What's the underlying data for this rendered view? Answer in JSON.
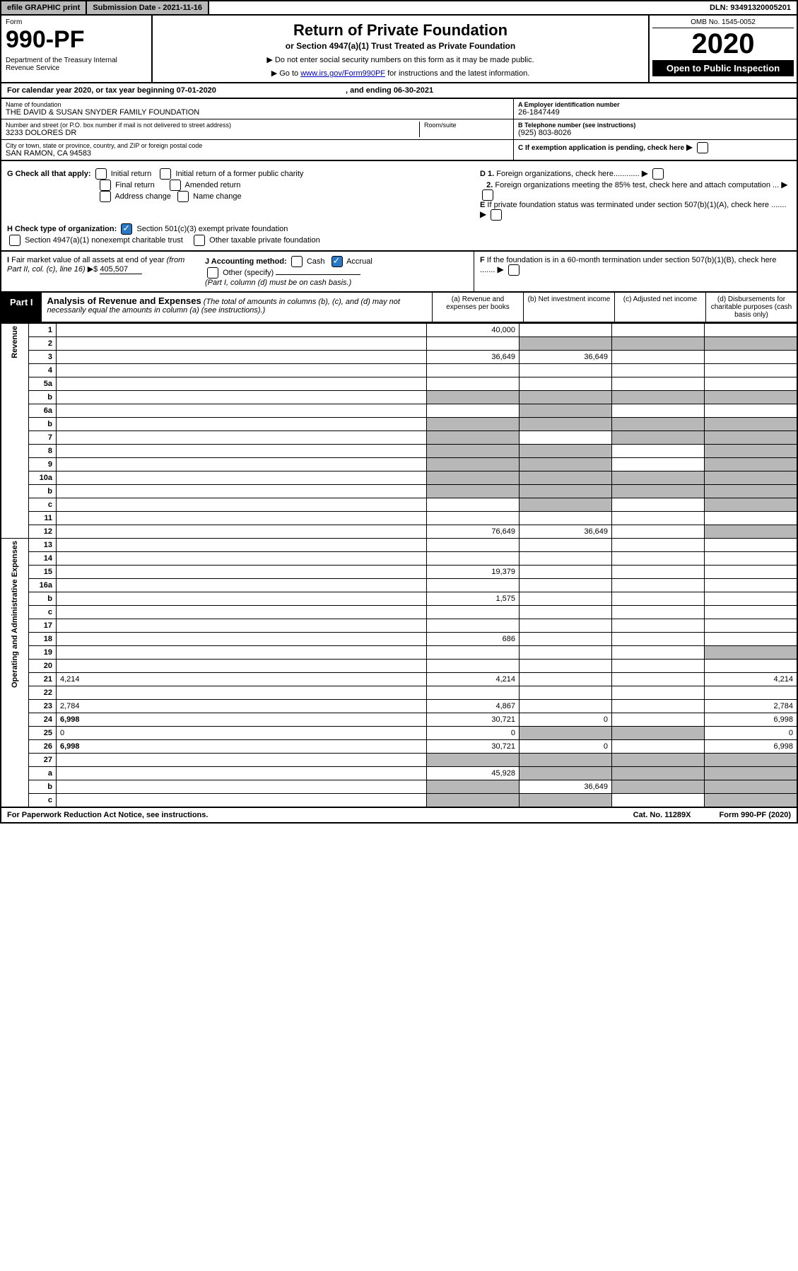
{
  "topbar": {
    "efile": "efile GRAPHIC print",
    "subdate": "Submission Date - 2021-11-16",
    "dln": "DLN: 93491320005201"
  },
  "header": {
    "form_label": "Form",
    "form_number": "990-PF",
    "dept": "Department of the Treasury\nInternal Revenue Service",
    "title": "Return of Private Foundation",
    "subtitle": "or Section 4947(a)(1) Trust Treated as Private Foundation",
    "note1": "▶ Do not enter social security numbers on this form as it may be made public.",
    "note2_prefix": "▶ Go to ",
    "note2_link": "www.irs.gov/Form990PF",
    "note2_suffix": " for instructions and the latest information.",
    "omb": "OMB No. 1545-0052",
    "year": "2020",
    "open": "Open to Public Inspection"
  },
  "calyear": {
    "text": "For calendar year 2020, or tax year beginning 07-01-2020",
    "ending": ", and ending 06-30-2021"
  },
  "info": {
    "name_label": "Name of foundation",
    "name": "THE DAVID & SUSAN SNYDER FAMILY FOUNDATION",
    "addr_label": "Number and street (or P.O. box number if mail is not delivered to street address)",
    "addr": "3233 DOLORES DR",
    "room_label": "Room/suite",
    "city_label": "City or town, state or province, country, and ZIP or foreign postal code",
    "city": "SAN RAMON, CA  94583",
    "a_label": "A Employer identification number",
    "a_val": "26-1847449",
    "b_label": "B Telephone number (see instructions)",
    "b_val": "(925) 803-8026",
    "c_label": "C If exemption application is pending, check here"
  },
  "checks": {
    "g": "G Check all that apply:",
    "g1": "Initial return",
    "g2": "Initial return of a former public charity",
    "g3": "Final return",
    "g4": "Amended return",
    "g5": "Address change",
    "g6": "Name change",
    "d1": "D 1. Foreign organizations, check here............",
    "d2": "2. Foreign organizations meeting the 85% test, check here and attach computation ...",
    "e": "E If private foundation status was terminated under section 507(b)(1)(A), check here .......",
    "h": "H Check type of organization:",
    "h1": "Section 501(c)(3) exempt private foundation",
    "h2": "Section 4947(a)(1) nonexempt charitable trust",
    "h3": "Other taxable private foundation",
    "i": "I Fair market value of all assets at end of year (from Part II, col. (c), line 16) ▶$",
    "i_val": "405,507",
    "j": "J Accounting method:",
    "j1": "Cash",
    "j2": "Accrual",
    "j3": "Other (specify)",
    "j_note": "(Part I, column (d) must be on cash basis.)",
    "f": "F If the foundation is in a 60-month termination under section 507(b)(1)(B), check here ......."
  },
  "part1": {
    "tag": "Part I",
    "title": "Analysis of Revenue and Expenses",
    "title_note": "(The total of amounts in columns (b), (c), and (d) may not necessarily equal the amounts in column (a) (see instructions).)",
    "col_a": "(a) Revenue and expenses per books",
    "col_b": "(b) Net investment income",
    "col_c": "(c) Adjusted net income",
    "col_d": "(d) Disbursements for charitable purposes (cash basis only)"
  },
  "sidelabels": {
    "rev": "Revenue",
    "oae": "Operating and Administrative Expenses"
  },
  "rows": [
    {
      "n": "1",
      "d": "",
      "a": "40,000",
      "b": "",
      "c": ""
    },
    {
      "n": "2",
      "d": "",
      "a": "",
      "b": "",
      "c": "",
      "greyb": true,
      "greyc": true,
      "greyd": true
    },
    {
      "n": "3",
      "d": "",
      "a": "36,649",
      "b": "36,649",
      "c": ""
    },
    {
      "n": "4",
      "d": "",
      "a": "",
      "b": "",
      "c": ""
    },
    {
      "n": "5a",
      "d": "",
      "a": "",
      "b": "",
      "c": ""
    },
    {
      "n": "b",
      "d": "",
      "a": "",
      "b": "",
      "c": "",
      "greyb": true,
      "greyc": true,
      "greyd": true,
      "greya": true
    },
    {
      "n": "6a",
      "d": "",
      "a": "",
      "b": "",
      "c": "",
      "greyb": true
    },
    {
      "n": "b",
      "d": "",
      "a": "",
      "b": "",
      "c": "",
      "greya": true,
      "greyb": true,
      "greyc": true,
      "greyd": true
    },
    {
      "n": "7",
      "d": "",
      "a": "",
      "b": "",
      "c": "",
      "greya": true,
      "greyc": true,
      "greyd": true
    },
    {
      "n": "8",
      "d": "",
      "a": "",
      "b": "",
      "c": "",
      "greya": true,
      "greyb": true,
      "greyd": true
    },
    {
      "n": "9",
      "d": "",
      "a": "",
      "b": "",
      "c": "",
      "greya": true,
      "greyb": true,
      "greyd": true
    },
    {
      "n": "10a",
      "d": "",
      "a": "",
      "b": "",
      "c": "",
      "greya": true,
      "greyb": true,
      "greyc": true,
      "greyd": true
    },
    {
      "n": "b",
      "d": "",
      "a": "",
      "b": "",
      "c": "",
      "greya": true,
      "greyb": true,
      "greyc": true,
      "greyd": true
    },
    {
      "n": "c",
      "d": "",
      "a": "",
      "b": "",
      "c": "",
      "greyb": true,
      "greyd": true
    },
    {
      "n": "11",
      "d": "",
      "a": "",
      "b": "",
      "c": ""
    },
    {
      "n": "12",
      "d": "",
      "a": "76,649",
      "b": "36,649",
      "c": "",
      "bold": true,
      "greyd": true
    },
    {
      "n": "13",
      "d": "",
      "a": "",
      "b": "",
      "c": ""
    },
    {
      "n": "14",
      "d": "",
      "a": "",
      "b": "",
      "c": ""
    },
    {
      "n": "15",
      "d": "",
      "a": "19,379",
      "b": "",
      "c": ""
    },
    {
      "n": "16a",
      "d": "",
      "a": "",
      "b": "",
      "c": ""
    },
    {
      "n": "b",
      "d": "",
      "a": "1,575",
      "b": "",
      "c": ""
    },
    {
      "n": "c",
      "d": "",
      "a": "",
      "b": "",
      "c": ""
    },
    {
      "n": "17",
      "d": "",
      "a": "",
      "b": "",
      "c": ""
    },
    {
      "n": "18",
      "d": "",
      "a": "686",
      "b": "",
      "c": ""
    },
    {
      "n": "19",
      "d": "",
      "a": "",
      "b": "",
      "c": "",
      "greyd": true
    },
    {
      "n": "20",
      "d": "",
      "a": "",
      "b": "",
      "c": ""
    },
    {
      "n": "21",
      "d": "4,214",
      "a": "4,214",
      "b": "",
      "c": ""
    },
    {
      "n": "22",
      "d": "",
      "a": "",
      "b": "",
      "c": ""
    },
    {
      "n": "23",
      "d": "2,784",
      "a": "4,867",
      "b": "",
      "c": ""
    },
    {
      "n": "24",
      "d": "6,998",
      "a": "30,721",
      "b": "0",
      "c": "",
      "bold": true
    },
    {
      "n": "25",
      "d": "0",
      "a": "0",
      "b": "",
      "c": "",
      "greyb": true,
      "greyc": true
    },
    {
      "n": "26",
      "d": "6,998",
      "a": "30,721",
      "b": "0",
      "c": "",
      "bold": true
    },
    {
      "n": "27",
      "d": "",
      "a": "",
      "b": "",
      "c": "",
      "greya": true,
      "greyb": true,
      "greyc": true,
      "greyd": true
    },
    {
      "n": "a",
      "d": "",
      "a": "45,928",
      "b": "",
      "c": "",
      "bold": true,
      "greyb": true,
      "greyc": true,
      "greyd": true
    },
    {
      "n": "b",
      "d": "",
      "a": "",
      "b": "36,649",
      "c": "",
      "bold": true,
      "greya": true,
      "greyc": true,
      "greyd": true
    },
    {
      "n": "c",
      "d": "",
      "a": "",
      "b": "",
      "c": "",
      "bold": true,
      "greya": true,
      "greyb": true,
      "greyd": true
    }
  ],
  "footer": {
    "left": "For Paperwork Reduction Act Notice, see instructions.",
    "mid": "Cat. No. 11289X",
    "right": "Form 990-PF (2020)"
  }
}
